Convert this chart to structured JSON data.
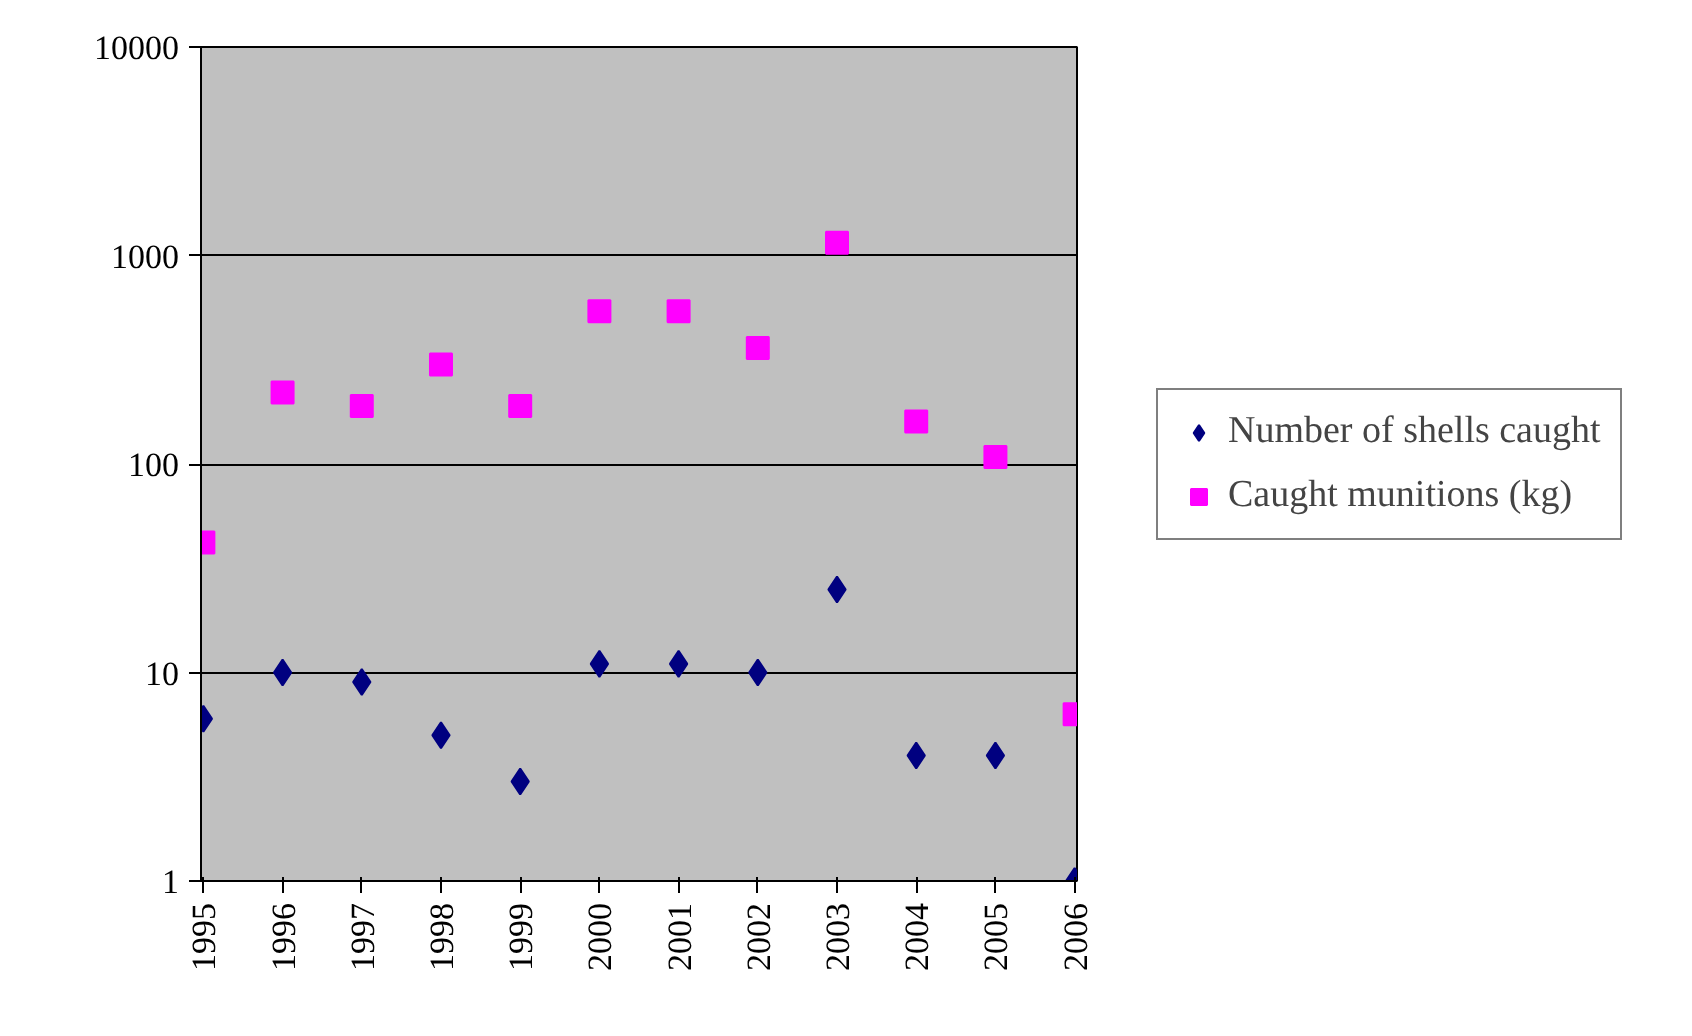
{
  "chart_data": {
    "type": "scatter",
    "categories": [
      "1995",
      "1996",
      "1997",
      "1998",
      "1999",
      "2000",
      "2001",
      "2002",
      "2003",
      "2004",
      "2005",
      "2006"
    ],
    "series": [
      {
        "name": "Number of shells caught",
        "color": "#000080",
        "marker": "diamond",
        "values": [
          6,
          10,
          9,
          5,
          3,
          11,
          11,
          10,
          25,
          4,
          4,
          1
        ]
      },
      {
        "name": "Caught munitions (kg)",
        "color": "#ff00ff",
        "marker": "square",
        "values": [
          42,
          220,
          190,
          300,
          190,
          540,
          540,
          360,
          1150,
          160,
          108,
          6.3
        ]
      }
    ],
    "log": "y",
    "ylim": [
      1,
      10000
    ],
    "yticks": [
      1,
      10,
      100,
      1000,
      10000
    ],
    "grid": "y",
    "legend": "right"
  }
}
